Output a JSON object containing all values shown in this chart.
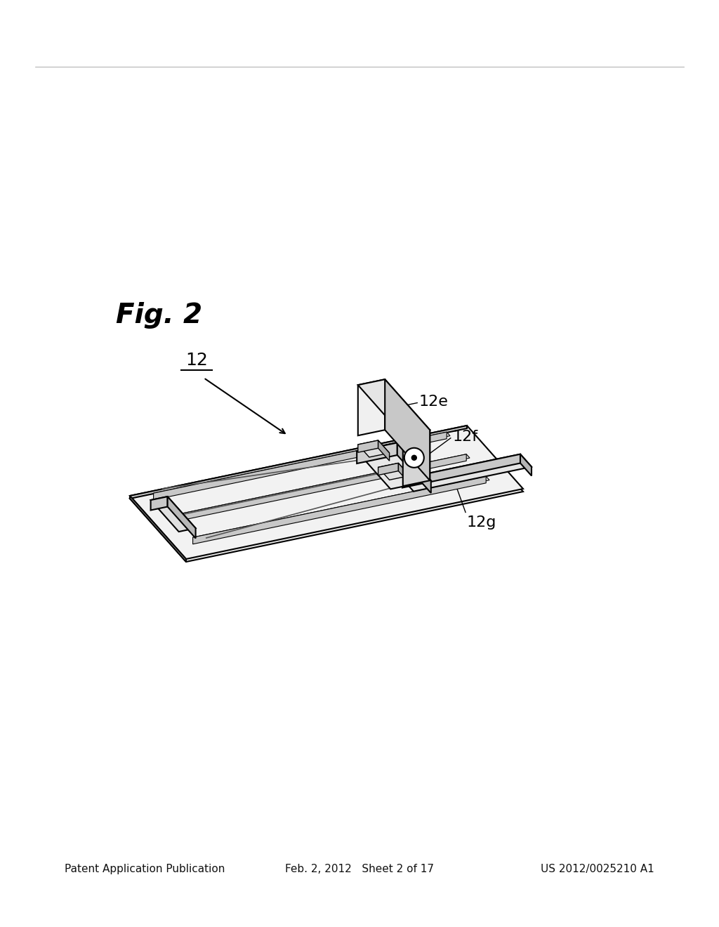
{
  "background_color": "#ffffff",
  "fig_width": 10.24,
  "fig_height": 13.2,
  "dpi": 100,
  "header_left": "Patent Application Publication",
  "header_center": "Feb. 2, 2012   Sheet 2 of 17",
  "header_right": "US 2012/0025210 A1",
  "header_fontsize": 11,
  "fig_label": "Fig. 2",
  "fig_label_fontsize": 28,
  "label_fontsize": 16,
  "line_color": "#000000",
  "line_width": 1.5
}
